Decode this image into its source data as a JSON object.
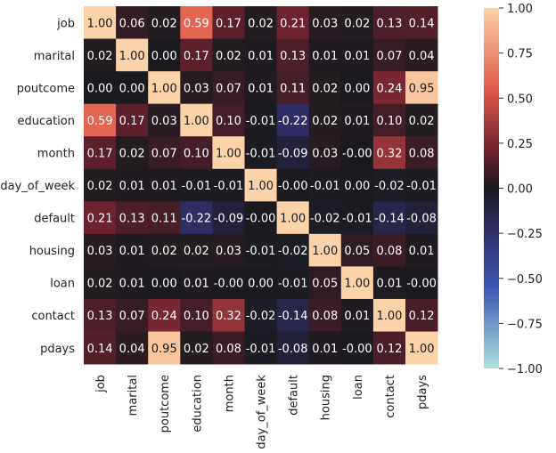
{
  "chart_data": {
    "type": "heatmap",
    "title": "",
    "xlabel": "",
    "ylabel": "",
    "row_labels": [
      "job",
      "marital",
      "poutcome",
      "education",
      "month",
      "day_of_week",
      "default",
      "housing",
      "loan",
      "contact",
      "pdays"
    ],
    "col_labels": [
      "job",
      "marital",
      "poutcome",
      "education",
      "month",
      "day_of_week",
      "default",
      "housing",
      "loan",
      "contact",
      "pdays"
    ],
    "values": [
      [
        "1.00",
        "0.06",
        "0.02",
        "0.59",
        "0.17",
        "0.02",
        "0.21",
        "0.03",
        "0.02",
        "0.13",
        "0.14"
      ],
      [
        "0.02",
        "1.00",
        "0.00",
        "0.17",
        "0.02",
        "0.01",
        "0.13",
        "0.01",
        "0.01",
        "0.07",
        "0.04"
      ],
      [
        "0.00",
        "0.00",
        "1.00",
        "0.03",
        "0.07",
        "0.01",
        "0.11",
        "0.02",
        "0.00",
        "0.24",
        "0.95"
      ],
      [
        "0.59",
        "0.17",
        "0.03",
        "1.00",
        "0.10",
        "-0.01",
        "-0.22",
        "0.02",
        "0.01",
        "0.10",
        "0.02"
      ],
      [
        "0.17",
        "0.02",
        "0.07",
        "0.10",
        "1.00",
        "-0.01",
        "-0.09",
        "0.03",
        "-0.00",
        "0.32",
        "0.08"
      ],
      [
        "0.02",
        "0.01",
        "0.01",
        "-0.01",
        "-0.01",
        "1.00",
        "-0.00",
        "-0.01",
        "0.00",
        "-0.02",
        "-0.01"
      ],
      [
        "0.21",
        "0.13",
        "0.11",
        "-0.22",
        "-0.09",
        "-0.00",
        "1.00",
        "-0.02",
        "-0.01",
        "-0.14",
        "-0.08"
      ],
      [
        "0.03",
        "0.01",
        "0.02",
        "0.02",
        "0.03",
        "-0.01",
        "-0.02",
        "1.00",
        "0.05",
        "0.08",
        "0.01"
      ],
      [
        "0.02",
        "0.01",
        "0.00",
        "0.01",
        "-0.00",
        "0.00",
        "-0.01",
        "0.05",
        "1.00",
        "0.01",
        "-0.00"
      ],
      [
        "0.13",
        "0.07",
        "0.24",
        "0.10",
        "0.32",
        "-0.02",
        "-0.14",
        "0.08",
        "0.01",
        "1.00",
        "0.12"
      ],
      [
        "0.14",
        "0.04",
        "0.95",
        "0.02",
        "0.08",
        "-0.01",
        "-0.08",
        "0.01",
        "-0.00",
        "0.12",
        "1.00"
      ]
    ],
    "colorbar": {
      "vmin": -1.0,
      "vmax": 1.0,
      "ticks": [
        "1.00",
        "0.75",
        "0.50",
        "0.25",
        "0.00",
        "−0.25",
        "−0.50",
        "−0.75",
        "−1.00"
      ],
      "colormap": "icefire",
      "colors": {
        "neg_end": "#aee3df",
        "neg_mid": "#3c56b4",
        "neg_low": "#2e2a5e",
        "center": "#1b1b1f",
        "pos_low": "#6a2030",
        "pos_mid": "#e15a48",
        "pos_end": "#fcd2a8"
      }
    },
    "grid": false,
    "legend": "colorbar-right"
  }
}
